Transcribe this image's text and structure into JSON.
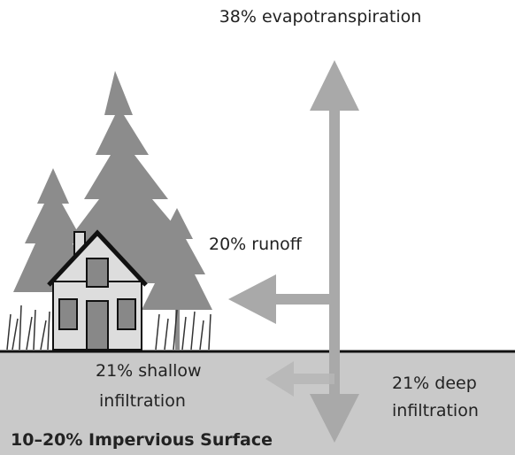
{
  "labels": {
    "evapotranspiration": "38% evapotranspiration",
    "runoff": "20% runoff",
    "shallow_infiltration": [
      "21% shallow",
      "infiltration"
    ],
    "deep_infiltration": [
      "21% deep",
      "infiltration"
    ]
  },
  "footer": "10–20% Impervious Surface"
}
